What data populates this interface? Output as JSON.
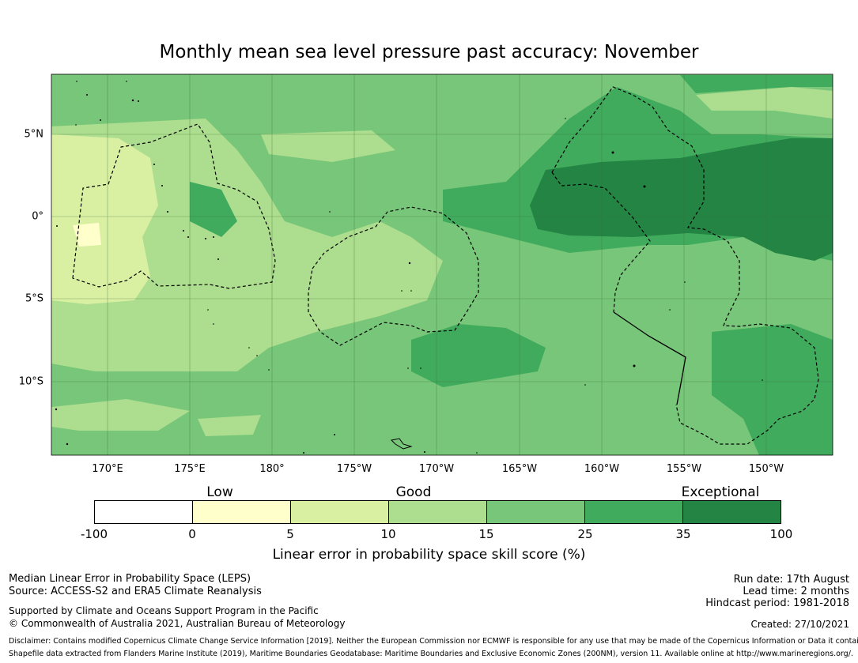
{
  "title": "Monthly mean sea level pressure past accuracy: November",
  "map": {
    "lon_ticks": [
      "170°E",
      "175°E",
      "180°",
      "175°W",
      "170°W",
      "165°W",
      "160°W",
      "155°W",
      "150°W"
    ],
    "lat_ticks": [
      "5°N",
      "0°",
      "5°S",
      "10°S"
    ],
    "colors": {
      "white": "#ffffff",
      "pale_yellow": "#ffffcc",
      "light_yellow_green": "#d9f0a3",
      "light_green": "#addd8e",
      "green": "#78c679",
      "mid_green": "#41ab5d",
      "dark_green": "#238443"
    }
  },
  "legend": {
    "categories": [
      "Low",
      "Good",
      "Exceptional"
    ],
    "colors": [
      "#ffffff",
      "#ffffcc",
      "#d9f0a3",
      "#addd8e",
      "#78c679",
      "#41ab5d",
      "#238443"
    ],
    "ticks": [
      "-100",
      "0",
      "5",
      "10",
      "15",
      "25",
      "35",
      "100"
    ],
    "label": "Linear error in probability space skill score (%)"
  },
  "footer": {
    "left1": "Median Linear Error in Probability Space (LEPS)",
    "left2": "Source: ACCESS-S2 and ERA5 Climate Reanalysis",
    "left3": "Supported by Climate and Oceans Support Program in the Pacific",
    "left4": "© Commonwealth of Australia 2021, Australian Bureau of Meteorology",
    "right1": "Run date: 17th August",
    "right2": "Lead time: 2 months",
    "right3": "Hindcast period: 1981-2018",
    "right4": "Created: 27/10/2021",
    "disclaimer1": "Disclaimer: Contains modified Copernicus Climate Change Service Information [2019]. Neither the European Commission nor ECMWF is responsible for any use that may be made of the Copernicus Information or Data it contains.",
    "disclaimer2": "Shapefile data extracted from Flanders Marine Institute (2019), Maritime Boundaries Geodatabase: Maritime Boundaries and Exclusive Economic Zones (200NM), version 11. Available online at http://www.marineregions.org/."
  }
}
